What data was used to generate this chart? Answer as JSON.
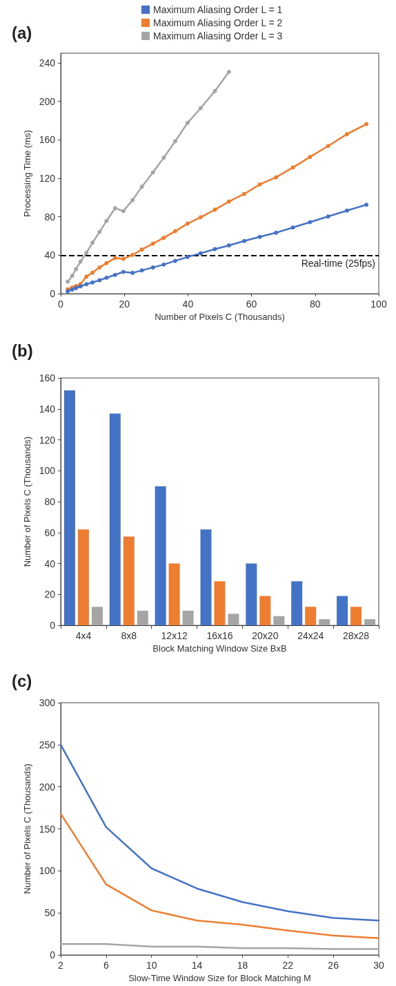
{
  "chart_data": [
    {
      "type": "line",
      "title": "(a)",
      "xlabel": "Number of Pixels C (Thousands)",
      "ylabel": "Processing Time (ms)",
      "x": [
        2.2,
        3.6,
        4.8,
        6.2,
        8.1,
        10,
        12.2,
        14.4,
        17.1,
        19.7,
        22.6,
        25.5,
        29,
        32.4,
        36,
        39.9,
        44,
        48.5,
        52.9,
        57.7,
        62.6,
        67.7,
        73,
        78.4,
        84.1,
        90,
        96.1
      ],
      "series": [
        {
          "name": "Maximum Aliasing Order L = 1",
          "color": "#4472c4",
          "values": [
            2.5,
            4.3,
            5.9,
            7.6,
            9.9,
            11.7,
            14,
            16.6,
            19.6,
            22.7,
            21.7,
            24.2,
            27.3,
            30.3,
            34.1,
            38.2,
            42,
            46.4,
            50.2,
            54.8,
            59.1,
            63.4,
            68.8,
            74.4,
            80.3,
            86.4,
            92.5
          ]
        },
        {
          "name": "Maximum Aliasing Order L = 2",
          "color": "#ed7d31",
          "values": [
            4.6,
            6.4,
            7.9,
            9.9,
            17.8,
            21.9,
            27.3,
            31.8,
            37.2,
            36.2,
            40.3,
            45.9,
            52,
            58.1,
            65,
            72.9,
            79.5,
            87.4,
            95.8,
            103.7,
            113.6,
            121,
            131.2,
            142.2,
            153.6,
            165.9,
            176.3
          ]
        },
        {
          "name": "Maximum Aliasing Order L = 3",
          "color": "#a5a5a5",
          "values": [
            12.5,
            18.6,
            25.5,
            33.4,
            42.5,
            53,
            64.2,
            75.7,
            88.9,
            85.9,
            97.3,
            111.1,
            126.1,
            141.4,
            158.5,
            177.6,
            192.9,
            210.7,
            230.6,
            null,
            null,
            null,
            null,
            null,
            null,
            null,
            null
          ]
        }
      ],
      "xlim": [
        0,
        100
      ],
      "xticks": [
        0,
        20,
        40,
        60,
        80,
        100
      ],
      "ylim": [
        0,
        250
      ],
      "yticks": [
        0,
        40,
        80,
        120,
        160,
        200,
        240
      ],
      "ref_lines": [
        {
          "axis": "y",
          "value": 40,
          "label": "Real-time (25fps)",
          "color": "#000000",
          "line_style": "dashed"
        }
      ],
      "grid": false,
      "legend": "top",
      "marker": "circle",
      "line_style": "solid"
    },
    {
      "type": "bar",
      "title": "(b)",
      "xlabel": "Block Matching Window Size BxB",
      "ylabel": "Number of Pixels C (Thousands)",
      "categories": [
        "4x4",
        "8x8",
        "12x12",
        "16x16",
        "20x20",
        "24x24",
        "28x28"
      ],
      "series": [
        {
          "color": "#4472c4",
          "values": [
            152,
            137,
            90,
            62,
            40,
            28.5,
            19
          ]
        },
        {
          "color": "#ed7d31",
          "values": [
            62,
            57.5,
            40,
            28.5,
            19,
            12,
            12
          ]
        },
        {
          "color": "#a5a5a5",
          "values": [
            12,
            9.5,
            9.5,
            7.5,
            6,
            4,
            4
          ]
        }
      ],
      "ylim": [
        0,
        160
      ],
      "yticks": [
        0,
        20,
        40,
        60,
        80,
        100,
        120,
        140,
        160
      ],
      "grid": false
    },
    {
      "type": "line",
      "title": "(c)",
      "xlabel": "Slow-Time Window Size for Block Matching M",
      "ylabel": "Number of Pixels C (Thousands)",
      "x": [
        2,
        6,
        10,
        14,
        18,
        22,
        26,
        30
      ],
      "series": [
        {
          "color": "#4472c4",
          "values": [
            250,
            152,
            103,
            79,
            63,
            52,
            44,
            41
          ]
        },
        {
          "color": "#ed7d31",
          "values": [
            168,
            84,
            53,
            41,
            36,
            29,
            23,
            20
          ]
        },
        {
          "color": "#a5a5a5",
          "values": [
            13,
            13,
            10,
            10,
            8,
            8,
            7,
            7
          ]
        }
      ],
      "xlim": [
        2,
        30
      ],
      "xticks": [
        2,
        6,
        10,
        14,
        18,
        22,
        26,
        30
      ],
      "ylim": [
        0,
        300
      ],
      "yticks": [
        0,
        50,
        100,
        150,
        200,
        250,
        300
      ],
      "grid": false,
      "marker": "none",
      "line_style": "solid"
    }
  ]
}
